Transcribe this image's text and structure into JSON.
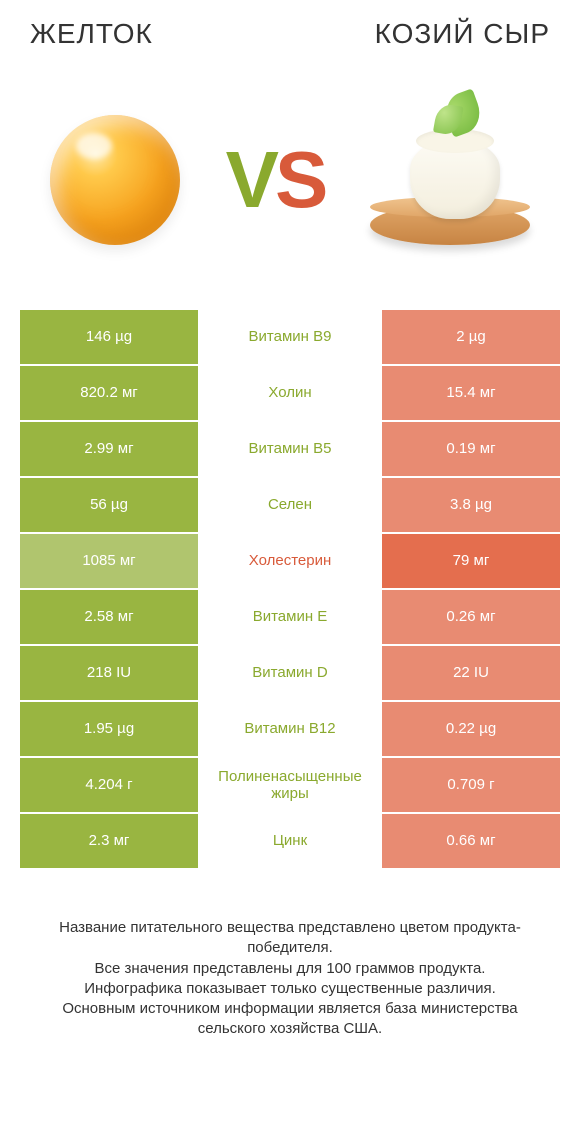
{
  "colors": {
    "left_winner": "#99b541",
    "right_winner": "#e46e4e",
    "left_loser": "#b0c56e",
    "right_loser": "#e88b72",
    "label_left_win": "#8aa92e",
    "label_right_win": "#d85a3a",
    "background": "#ffffff"
  },
  "header": {
    "left_title": "ЖЕЛТОК",
    "right_title": "КОЗИЙ СЫР",
    "vs_v": "V",
    "vs_s": "S"
  },
  "rows": [
    {
      "left": "146 µg",
      "label": "Витамин B9",
      "right": "2 µg",
      "winner": "left"
    },
    {
      "left": "820.2 мг",
      "label": "Холин",
      "right": "15.4 мг",
      "winner": "left"
    },
    {
      "left": "2.99 мг",
      "label": "Витамин B5",
      "right": "0.19 мг",
      "winner": "left"
    },
    {
      "left": "56 µg",
      "label": "Селен",
      "right": "3.8 µg",
      "winner": "left"
    },
    {
      "left": "1085 мг",
      "label": "Холестерин",
      "right": "79 мг",
      "winner": "right"
    },
    {
      "left": "2.58 мг",
      "label": "Витамин E",
      "right": "0.26 мг",
      "winner": "left"
    },
    {
      "left": "218 IU",
      "label": "Витамин D",
      "right": "22 IU",
      "winner": "left"
    },
    {
      "left": "1.95 µg",
      "label": "Витамин B12",
      "right": "0.22 µg",
      "winner": "left"
    },
    {
      "left": "4.204 г",
      "label": "Полиненасыщенные жиры",
      "right": "0.709 г",
      "winner": "left"
    },
    {
      "left": "2.3 мг",
      "label": "Цинк",
      "right": "0.66 мг",
      "winner": "left"
    }
  ],
  "footer": {
    "line1": "Название питательного вещества представлено цветом продукта-победителя.",
    "line2": "Все значения представлены для 100 граммов продукта.",
    "line3": "Инфографика показывает только существенные различия.",
    "line4": "Основным источником информации является база министерства сельского хозяйства США."
  }
}
